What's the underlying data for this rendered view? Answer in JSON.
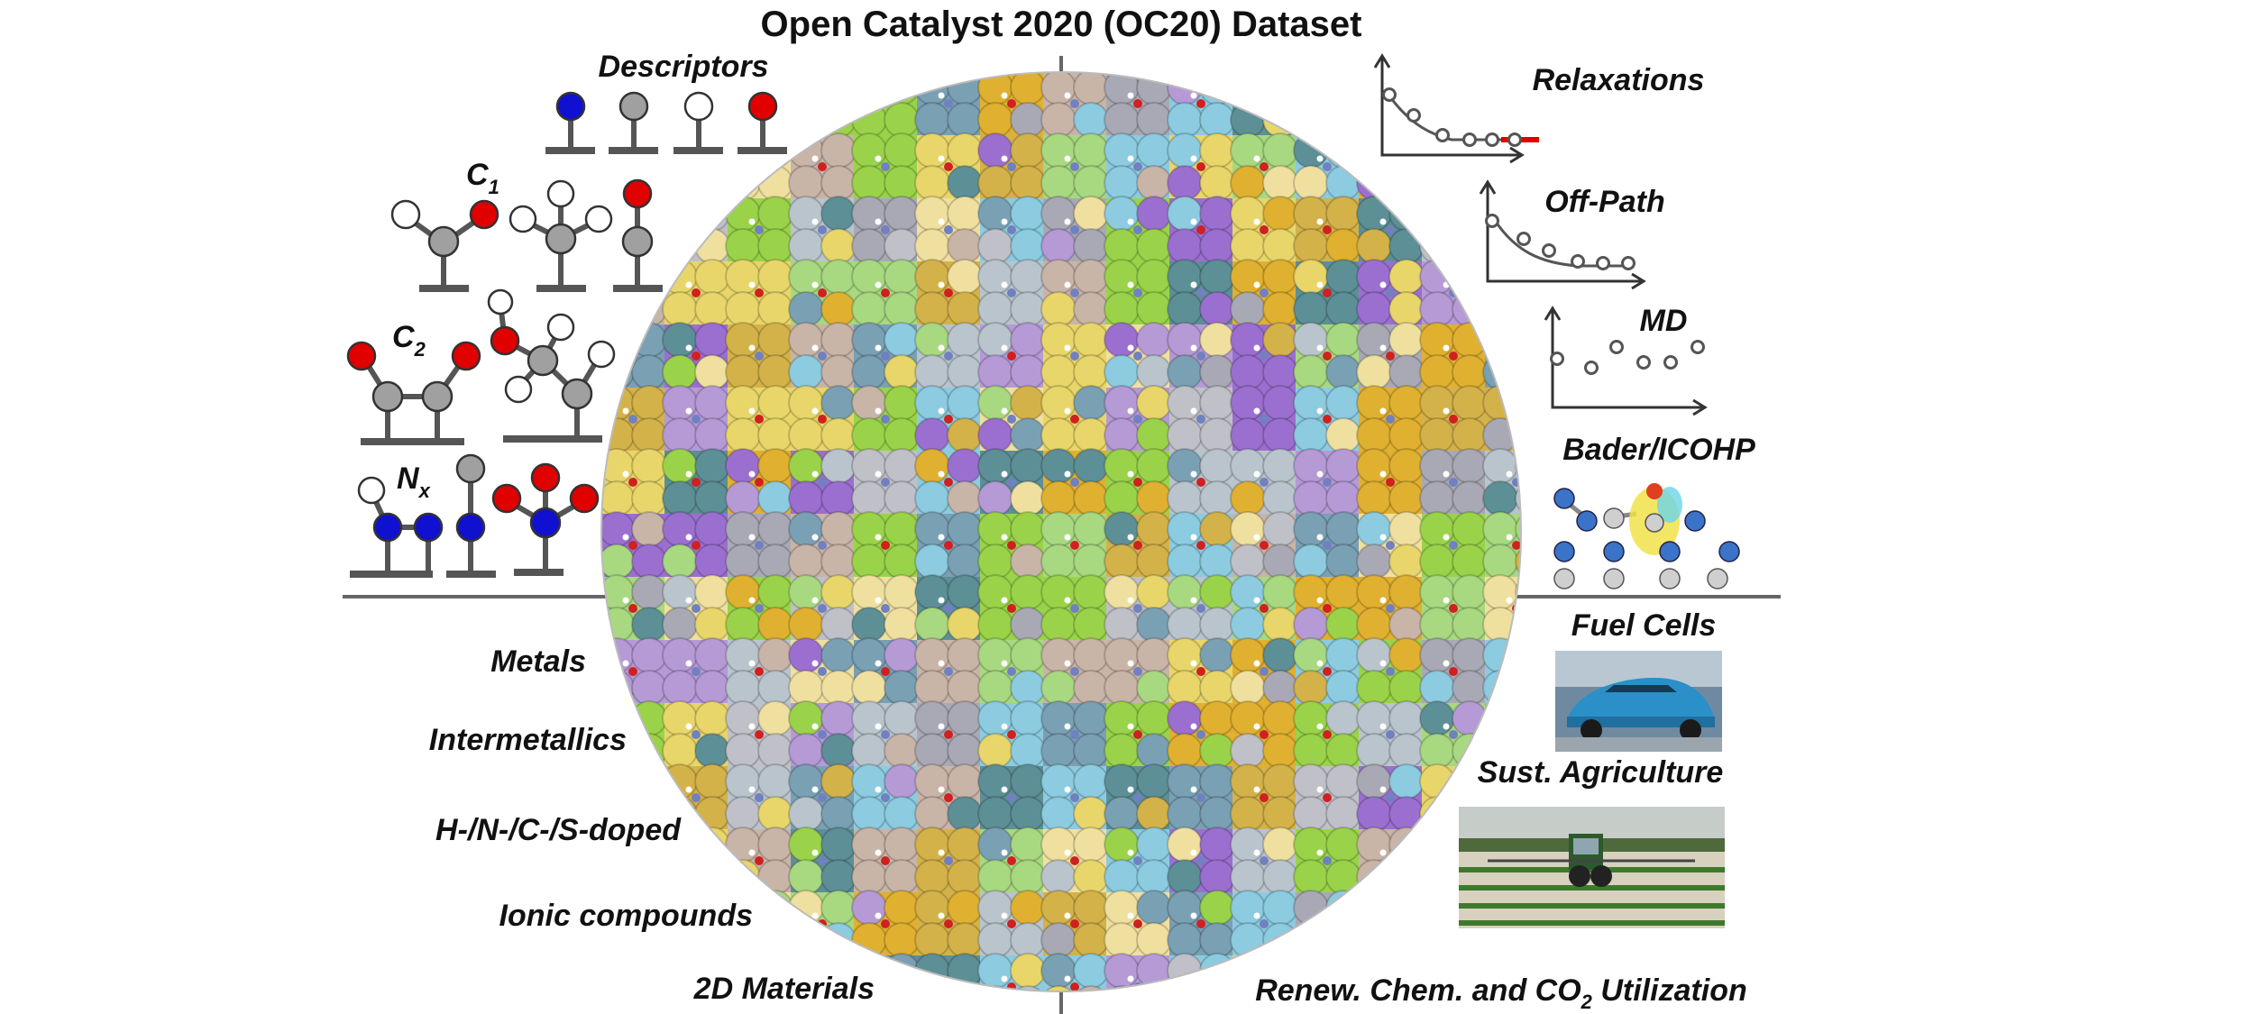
{
  "title": "Open Catalyst 2020 (OC20) Dataset",
  "descriptors": {
    "heading": "Descriptors",
    "c1": "C",
    "c1_sub": "1",
    "c2": "C",
    "c2_sub": "2",
    "nx": "N",
    "nx_sub": "x"
  },
  "materials": [
    "Metals",
    "Intermetallics",
    "H-/N-/C-/S-doped",
    "Ionic compounds",
    "2D Materials"
  ],
  "tasks": {
    "relaxations": "Relaxations",
    "off_path": "Off-Path",
    "md": "MD",
    "bader": "Bader/ICOHP"
  },
  "applications": {
    "fuel_cells": "Fuel Cells",
    "agriculture": "Sust. Agriculture",
    "renewable": "Renew. Chem. and CO",
    "renewable_sub": "2",
    "renewable_tail": " Utilization"
  },
  "colors": {
    "nitrogen": "#1010d0",
    "carbon": "#a0a0a0",
    "hydrogen": "#ffffff",
    "oxygen": "#e00000",
    "trajectory_highlight": "#e00000",
    "divider": "#666666"
  }
}
